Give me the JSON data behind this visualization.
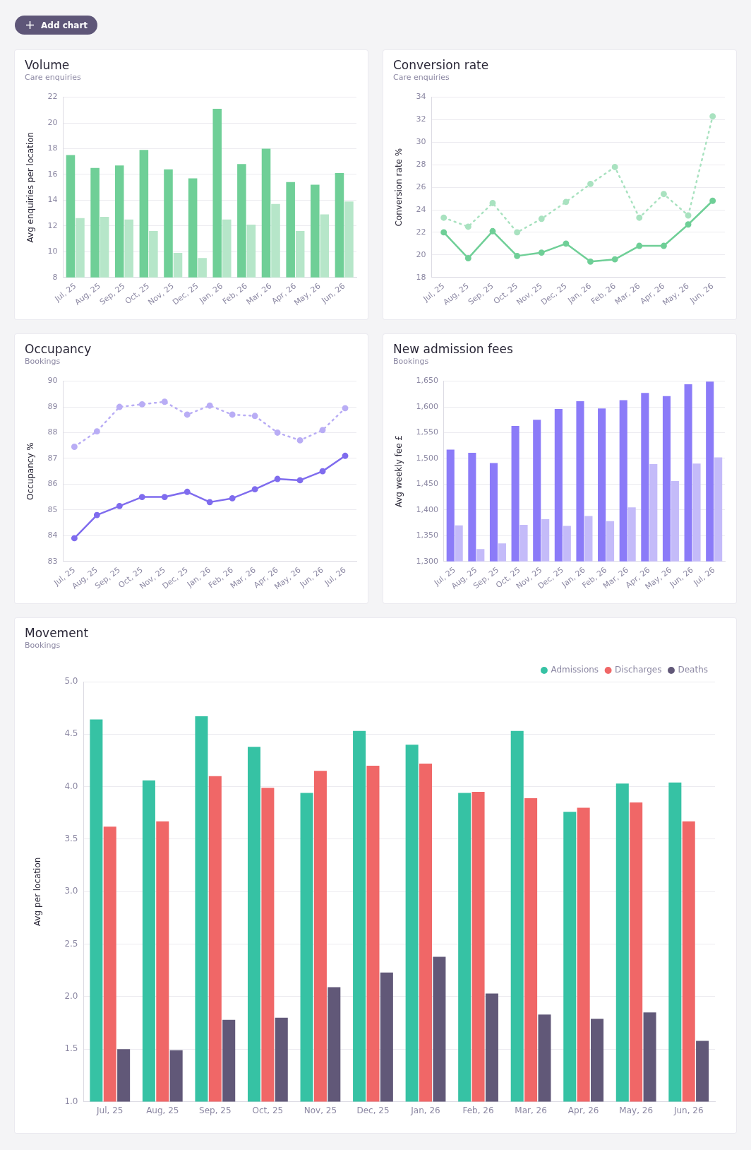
{
  "chart_data": [
    {
      "type": "other",
      "title": "Add chart"
    },
    {
      "type": "bar",
      "title": "Volume",
      "subtitle": "Care enquiries",
      "ylabel": "Avg enquiries per location",
      "categories": [
        "Jul, 25",
        "Aug, 25",
        "Sep, 25",
        "Oct, 25",
        "Nov, 25",
        "Dec, 25",
        "Jan, 26",
        "Feb, 26",
        "Mar, 26",
        "Apr, 26",
        "May, 26",
        "Jun, 26"
      ],
      "series": [
        {
          "color": "#6fcf97",
          "values": [
            17.5,
            16.5,
            16.7,
            17.9,
            16.4,
            15.7,
            21.1,
            16.8,
            18.0,
            15.4,
            15.2,
            16.1
          ]
        },
        {
          "color": "#b6e6c9",
          "values": [
            12.6,
            12.7,
            12.5,
            11.6,
            9.9,
            9.5,
            12.5,
            12.1,
            13.7,
            11.6,
            12.9,
            13.9
          ]
        }
      ],
      "ylim": [
        8,
        22
      ],
      "yticks": [
        8,
        10,
        12,
        14,
        16,
        18,
        20,
        22
      ],
      "grid": "y"
    },
    {
      "type": "line",
      "title": "Conversion rate",
      "subtitle": "Care enquiries",
      "ylabel": "Conversion rate %",
      "categories": [
        "Jul, 25",
        "Aug, 25",
        "Sep, 25",
        "Oct, 25",
        "Nov, 25",
        "Dec, 25",
        "Jan, 26",
        "Feb, 26",
        "Mar, 26",
        "Apr, 26",
        "May, 26",
        "Jun, 26"
      ],
      "series": [
        {
          "color": "#6fcf97",
          "line_style": "solid",
          "values": [
            22.0,
            19.7,
            22.1,
            19.9,
            20.2,
            21.0,
            19.4,
            19.6,
            20.8,
            20.8,
            22.7,
            24.8
          ]
        },
        {
          "color": "#a9e2c0",
          "line_style": "dotted",
          "values": [
            23.3,
            22.5,
            24.6,
            22.0,
            23.2,
            24.7,
            26.3,
            27.8,
            23.3,
            25.4,
            23.5,
            32.3
          ]
        }
      ],
      "ylim": [
        18,
        34
      ],
      "yticks": [
        18,
        20,
        22,
        24,
        26,
        28,
        30,
        32,
        34
      ],
      "grid": "y",
      "marker": "circle"
    },
    {
      "type": "line",
      "title": "Occupancy",
      "subtitle": "Bookings",
      "ylabel": "Occupancy %",
      "categories": [
        "Jul, 25",
        "Aug, 25",
        "Sep, 25",
        "Oct, 25",
        "Nov, 25",
        "Dec, 25",
        "Jan, 26",
        "Feb, 26",
        "Mar, 26",
        "Apr, 26",
        "May, 26",
        "Jun, 26",
        "Jul, 26"
      ],
      "series": [
        {
          "color": "#7f6cee",
          "line_style": "solid",
          "values": [
            83.9,
            84.8,
            85.15,
            85.5,
            85.5,
            85.7,
            85.3,
            85.45,
            85.8,
            86.2,
            86.15,
            86.5,
            87.1
          ]
        },
        {
          "color": "#b9adf5",
          "line_style": "dotted",
          "values": [
            87.45,
            88.05,
            89.0,
            89.1,
            89.2,
            88.7,
            89.05,
            88.7,
            88.65,
            88.0,
            87.7,
            88.1,
            88.95
          ]
        }
      ],
      "ylim": [
        83,
        90
      ],
      "yticks": [
        83,
        84,
        85,
        86,
        87,
        88,
        89,
        90
      ],
      "grid": "y",
      "marker": "circle"
    },
    {
      "type": "bar",
      "title": "New admission fees",
      "subtitle": "Bookings",
      "ylabel": "Avg weekly fee £",
      "categories": [
        "Jul, 25",
        "Aug, 25",
        "Sep, 25",
        "Oct, 25",
        "Nov, 25",
        "Dec, 25",
        "Jan, 26",
        "Feb, 26",
        "Mar, 26",
        "Apr, 26",
        "May, 26",
        "Jun, 26",
        "Jul, 26"
      ],
      "series": [
        {
          "color": "#8b7bf8",
          "values": [
            1517,
            1511,
            1491,
            1563,
            1575,
            1596,
            1611,
            1597,
            1613,
            1627,
            1621,
            1644,
            1649
          ]
        },
        {
          "color": "#c4bbf9",
          "values": [
            1370,
            1324,
            1335,
            1371,
            1382,
            1369,
            1388,
            1378,
            1405,
            1489,
            1456,
            1490,
            1502
          ]
        }
      ],
      "ylim": [
        1300,
        1650
      ],
      "yticks": [
        {
          "value": 1300,
          "label": "1,300"
        },
        {
          "value": 1350,
          "label": "1,350"
        },
        {
          "value": 1400,
          "label": "1,400"
        },
        {
          "value": 1450,
          "label": "1,450"
        },
        {
          "value": 1500,
          "label": "1,500"
        },
        {
          "value": 1550,
          "label": "1,550"
        },
        {
          "value": 1600,
          "label": "1,600"
        },
        {
          "value": 1650,
          "label": "1,650"
        }
      ],
      "grid": "y"
    },
    {
      "type": "bar",
      "title": "Movement",
      "subtitle": "Bookings",
      "ylabel": "Avg per location",
      "categories": [
        "Jul, 25",
        "Aug, 25",
        "Sep, 25",
        "Oct, 25",
        "Nov, 25",
        "Dec, 25",
        "Jan, 26",
        "Feb, 26",
        "Mar, 26",
        "Apr, 26",
        "May, 26",
        "Jun, 26"
      ],
      "series": [
        {
          "name": "Admissions",
          "color": "#36c2a4",
          "values": [
            4.64,
            4.06,
            4.67,
            4.38,
            3.94,
            4.53,
            4.4,
            3.94,
            4.53,
            3.76,
            4.03,
            4.04
          ]
        },
        {
          "name": "Discharges",
          "color": "#f06767",
          "values": [
            3.62,
            3.67,
            4.1,
            3.99,
            4.15,
            4.2,
            4.22,
            3.95,
            3.89,
            3.8,
            3.85,
            3.67
          ]
        },
        {
          "name": "Deaths",
          "color": "#615878",
          "values": [
            1.5,
            1.49,
            1.78,
            1.8,
            2.09,
            2.23,
            2.38,
            2.03,
            1.83,
            1.79,
            1.85,
            1.58
          ]
        }
      ],
      "ylim": [
        1.0,
        5.0
      ],
      "yticks": [
        {
          "value": 1,
          "label": "1.0"
        },
        1.5,
        {
          "value": 2,
          "label": "2.0"
        },
        2.5,
        {
          "value": 3,
          "label": "3.0"
        },
        3.5,
        {
          "value": 4,
          "label": "4.0"
        },
        4.5,
        {
          "value": 5,
          "label": "5.0"
        }
      ],
      "grid": "y",
      "legend": "top right"
    }
  ]
}
